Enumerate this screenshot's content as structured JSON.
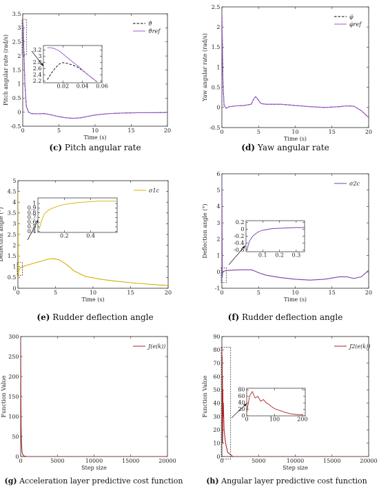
{
  "captions": [
    {
      "letter": "(c)",
      "text": "Pitch angular rate"
    },
    {
      "letter": "(d)",
      "text": "Yaw angular rate"
    },
    {
      "letter": "(e)",
      "text": "Rudder deflection angle"
    },
    {
      "letter": "(f)",
      "text": "Rudder deflection angle"
    },
    {
      "letter": "(g)",
      "text": "Acceleration layer predictive cost function"
    },
    {
      "letter": "(h)",
      "text": "Angular layer predictive cost function"
    }
  ],
  "colors": {
    "purple": "#9b59d0",
    "black": "#000000",
    "yellow": "#d4b000",
    "violet": "#7a3fa8",
    "red": "#b22222",
    "dark_red": "#8b0000"
  },
  "chart_data": [
    {
      "id": "c",
      "type": "line",
      "xlabel": "Time (s)",
      "ylabel": "Pitch angular rate (rad/s)",
      "xlim": [
        0,
        20
      ],
      "ylim": [
        -0.5,
        3.5
      ],
      "xticks": [
        0,
        5,
        10,
        15,
        20
      ],
      "yticks": [
        -0.5,
        0,
        0.5,
        1,
        1.5,
        2,
        2.5,
        3,
        3.5
      ],
      "grid": false,
      "legend_position": "top-right",
      "series": [
        {
          "name": "ϑ̇",
          "style": "dashed",
          "color": "#000000",
          "x": [
            0,
            0.05,
            0.15,
            0.3,
            0.5,
            0.8,
            1.2,
            2,
            3,
            4,
            5,
            6,
            7,
            8,
            9,
            10,
            12,
            14,
            16,
            18,
            20
          ],
          "y": [
            3.25,
            3.1,
            2.2,
            1.0,
            0.2,
            0.0,
            -0.05,
            -0.06,
            -0.05,
            -0.1,
            -0.16,
            -0.2,
            -0.22,
            -0.2,
            -0.15,
            -0.1,
            -0.05,
            -0.03,
            -0.02,
            -0.02,
            -0.01
          ]
        },
        {
          "name": "ϑ̇ref",
          "style": "solid",
          "color": "#9b59d0",
          "x": [
            0,
            0.05,
            0.15,
            0.3,
            0.5,
            0.8,
            1.2,
            2,
            3,
            4,
            5,
            6,
            7,
            8,
            9,
            10,
            12,
            14,
            16,
            18,
            20
          ],
          "y": [
            3.25,
            3.1,
            2.2,
            1.0,
            0.2,
            0.0,
            -0.05,
            -0.06,
            -0.05,
            -0.1,
            -0.16,
            -0.2,
            -0.22,
            -0.2,
            -0.15,
            -0.1,
            -0.05,
            -0.03,
            -0.02,
            -0.02,
            -0.01
          ]
        }
      ],
      "inset": {
        "xlim": [
          0,
          0.06
        ],
        "ylim": [
          2.15,
          3.35
        ],
        "xticks": [
          0.02,
          0.04,
          0.06
        ],
        "yticks": [
          2.2,
          2.4,
          2.6,
          2.8,
          3,
          3.2
        ],
        "series": [
          {
            "name": "ϑ̇",
            "style": "dashed",
            "color": "#000000",
            "x": [
              0.004,
              0.008,
              0.012,
              0.016,
              0.02,
              0.025,
              0.03,
              0.035,
              0.04,
              0.045,
              0.05,
              0.055
            ],
            "y": [
              2.25,
              2.45,
              2.62,
              2.75,
              2.8,
              2.77,
              2.72,
              2.65,
              2.55,
              2.42,
              2.3,
              2.18
            ]
          },
          {
            "name": "ϑ̇ref",
            "style": "solid",
            "color": "#9b59d0",
            "x": [
              0.004,
              0.008,
              0.012,
              0.016,
              0.02,
              0.025,
              0.03,
              0.035,
              0.04,
              0.045,
              0.05,
              0.055
            ],
            "y": [
              3.28,
              3.28,
              3.24,
              3.18,
              3.08,
              2.95,
              2.82,
              2.7,
              2.56,
              2.42,
              2.3,
              2.18
            ]
          }
        ]
      }
    },
    {
      "id": "d",
      "type": "line",
      "xlabel": "Time (s)",
      "ylabel": "Yaw angular rate (rad/s)",
      "xlim": [
        0,
        20
      ],
      "ylim": [
        -0.5,
        2.5
      ],
      "xticks": [
        0,
        5,
        10,
        15,
        20
      ],
      "yticks": [
        -0.5,
        0,
        0.5,
        1,
        1.5,
        2,
        2.5
      ],
      "grid": false,
      "legend_position": "top-right",
      "series": [
        {
          "name": "φ̇",
          "style": "dashed",
          "color": "#000000",
          "x": [
            0,
            0.05,
            0.15,
            0.3,
            0.6,
            1,
            2,
            3,
            4,
            4.3,
            4.6,
            4.9,
            5.3,
            6,
            8,
            10,
            12,
            14,
            16,
            17,
            18,
            19,
            20
          ],
          "y": [
            2.35,
            1.8,
            0.6,
            0.05,
            -0.02,
            0.02,
            0.04,
            0.05,
            0.08,
            0.2,
            0.27,
            0.2,
            0.1,
            0.08,
            0.08,
            0.05,
            0.02,
            0.0,
            0.02,
            0.04,
            0.03,
            -0.08,
            -0.25
          ]
        },
        {
          "name": "φ̇ref",
          "style": "solid",
          "color": "#9b59d0",
          "x": [
            0,
            0.05,
            0.15,
            0.3,
            0.6,
            1,
            2,
            3,
            4,
            4.3,
            4.6,
            4.9,
            5.3,
            6,
            8,
            10,
            12,
            14,
            16,
            17,
            18,
            19,
            20
          ],
          "y": [
            2.35,
            1.8,
            0.6,
            0.05,
            -0.02,
            0.02,
            0.04,
            0.05,
            0.08,
            0.2,
            0.27,
            0.2,
            0.1,
            0.08,
            0.08,
            0.05,
            0.02,
            0.0,
            0.02,
            0.04,
            0.03,
            -0.08,
            -0.25
          ]
        }
      ]
    },
    {
      "id": "e",
      "type": "line",
      "xlabel": "Time (s)",
      "ylabel": "Deflection angle (°)",
      "xlim": [
        0,
        20
      ],
      "ylim": [
        0,
        5
      ],
      "xticks": [
        0,
        5,
        10,
        15,
        20
      ],
      "yticks": [
        0,
        0.5,
        1,
        1.5,
        2,
        2.5,
        3,
        3.5,
        4,
        4.5,
        5
      ],
      "grid": false,
      "legend_position": "top-right",
      "series": [
        {
          "name": "σ1c",
          "style": "solid",
          "color": "#d4b000",
          "x": [
            0,
            0.05,
            0.1,
            0.3,
            0.6,
            1,
            2,
            3,
            4,
            4.7,
            5.5,
            6.5,
            7.5,
            9,
            11,
            13,
            15,
            17,
            19,
            20
          ],
          "y": [
            4.5,
            0.5,
            0.8,
            0.95,
            1.0,
            1.05,
            1.15,
            1.25,
            1.35,
            1.38,
            1.32,
            1.1,
            0.8,
            0.55,
            0.42,
            0.33,
            0.26,
            0.2,
            0.15,
            0.13
          ]
        }
      ],
      "inset": {
        "xlim": [
          0,
          0.6
        ],
        "ylim": [
          0.38,
          1.12
        ],
        "xticks": [
          0.2,
          0.4
        ],
        "yticks": [
          0.4,
          0.5,
          0.6,
          0.7,
          0.8,
          0.9,
          1
        ],
        "series": [
          {
            "name": "σ1c",
            "style": "solid",
            "color": "#d4b000",
            "x": [
              0.01,
              0.03,
              0.05,
              0.08,
              0.12,
              0.16,
              0.2,
              0.25,
              0.3,
              0.35,
              0.4,
              0.45,
              0.5,
              0.55,
              0.6
            ],
            "y": [
              0.45,
              0.65,
              0.78,
              0.86,
              0.91,
              0.95,
              0.98,
              1.0,
              1.02,
              1.03,
              1.04,
              1.05,
              1.05,
              1.05,
              1.05
            ]
          }
        ]
      }
    },
    {
      "id": "f",
      "type": "line",
      "xlabel": "Time (s)",
      "ylabel": "Deflection angle (°)",
      "xlim": [
        0,
        20
      ],
      "ylim": [
        -1,
        6
      ],
      "xticks": [
        0,
        5,
        10,
        15,
        20
      ],
      "yticks": [
        -1,
        0,
        1,
        2,
        3,
        4,
        5,
        6
      ],
      "grid": false,
      "legend_position": "top-right",
      "series": [
        {
          "name": "σ2c",
          "style": "solid",
          "color": "#7a3fa8",
          "x": [
            0,
            0.05,
            0.1,
            0.3,
            0.6,
            1,
            2,
            3,
            4,
            4.5,
            5,
            6,
            8,
            10,
            12,
            14,
            16,
            17,
            18,
            19,
            20
          ],
          "y": [
            5.5,
            -0.3,
            0.0,
            0.05,
            0.08,
            0.1,
            0.12,
            0.13,
            0.13,
            0.05,
            -0.05,
            -0.2,
            -0.35,
            -0.45,
            -0.5,
            -0.45,
            -0.3,
            -0.3,
            -0.4,
            -0.3,
            0.1
          ]
        }
      ],
      "inset": {
        "xlim": [
          0,
          0.35
        ],
        "ylim": [
          -0.65,
          0.25
        ],
        "xticks": [
          0.1,
          0.2,
          0.3
        ],
        "yticks": [
          -0.6,
          -0.4,
          -0.2,
          0,
          0.2
        ],
        "series": [
          {
            "name": "σ2c",
            "style": "solid",
            "color": "#7a3fa8",
            "x": [
              0.005,
              0.02,
              0.04,
              0.06,
              0.08,
              0.1,
              0.13,
              0.16,
              0.2,
              0.25,
              0.3,
              0.35
            ],
            "y": [
              -0.6,
              -0.35,
              -0.2,
              -0.12,
              -0.06,
              -0.03,
              0.0,
              0.02,
              0.03,
              0.04,
              0.05,
              0.05
            ]
          }
        ]
      }
    },
    {
      "id": "g",
      "type": "line",
      "xlabel": "Step size",
      "ylabel": "Function Value",
      "xlim": [
        0,
        20000
      ],
      "ylim": [
        0,
        300
      ],
      "xticks": [
        0,
        5000,
        10000,
        15000,
        20000
      ],
      "yticks": [
        0,
        50,
        100,
        150,
        200,
        250,
        300
      ],
      "grid": false,
      "legend_position": "top-right",
      "series": [
        {
          "name": "J(e(k))",
          "style": "solid",
          "color": "#b22222",
          "x": [
            0,
            10,
            30,
            60,
            100,
            150,
            200,
            300,
            500,
            800,
            1500,
            5000,
            10000,
            20000
          ],
          "y": [
            285,
            240,
            150,
            80,
            40,
            20,
            10,
            4,
            1,
            0.2,
            0,
            0,
            0,
            0
          ]
        }
      ]
    },
    {
      "id": "h",
      "type": "line",
      "xlabel": "Step size",
      "ylabel": "Function Value",
      "xlim": [
        0,
        20000
      ],
      "ylim": [
        0,
        90
      ],
      "xticks": [
        0,
        5000,
        10000,
        15000,
        20000
      ],
      "yticks": [
        0,
        10,
        20,
        30,
        40,
        50,
        60,
        70,
        80,
        90
      ],
      "grid": false,
      "legend_position": "top-right",
      "series": [
        {
          "name": "J2(e(k))",
          "style": "solid",
          "color": "#b22222",
          "x": [
            0,
            20,
            40,
            60,
            80,
            100,
            130,
            160,
            200,
            300,
            500,
            800,
            1500,
            5000,
            10000,
            20000
          ],
          "y": [
            82,
            40,
            75,
            20,
            60,
            10,
            50,
            30,
            40,
            20,
            10,
            3,
            0,
            0,
            0,
            0
          ]
        }
      ],
      "inset": {
        "xlim": [
          0,
          210
        ],
        "ylim": [
          0,
          85
        ],
        "xticks": [
          0,
          100,
          200
        ],
        "yticks": [
          0,
          20,
          40,
          60,
          80
        ],
        "series": [
          {
            "name": "J2(e(k))",
            "style": "solid",
            "color": "#b22222",
            "x": [
              0,
              10,
              20,
              30,
              40,
              50,
              60,
              70,
              80,
              90,
              100,
              120,
              140,
              160,
              180,
              200
            ],
            "y": [
              10,
              60,
              75,
              55,
              60,
              45,
              50,
              40,
              35,
              28,
              22,
              16,
              10,
              6,
              4,
              3
            ]
          }
        ]
      }
    }
  ]
}
